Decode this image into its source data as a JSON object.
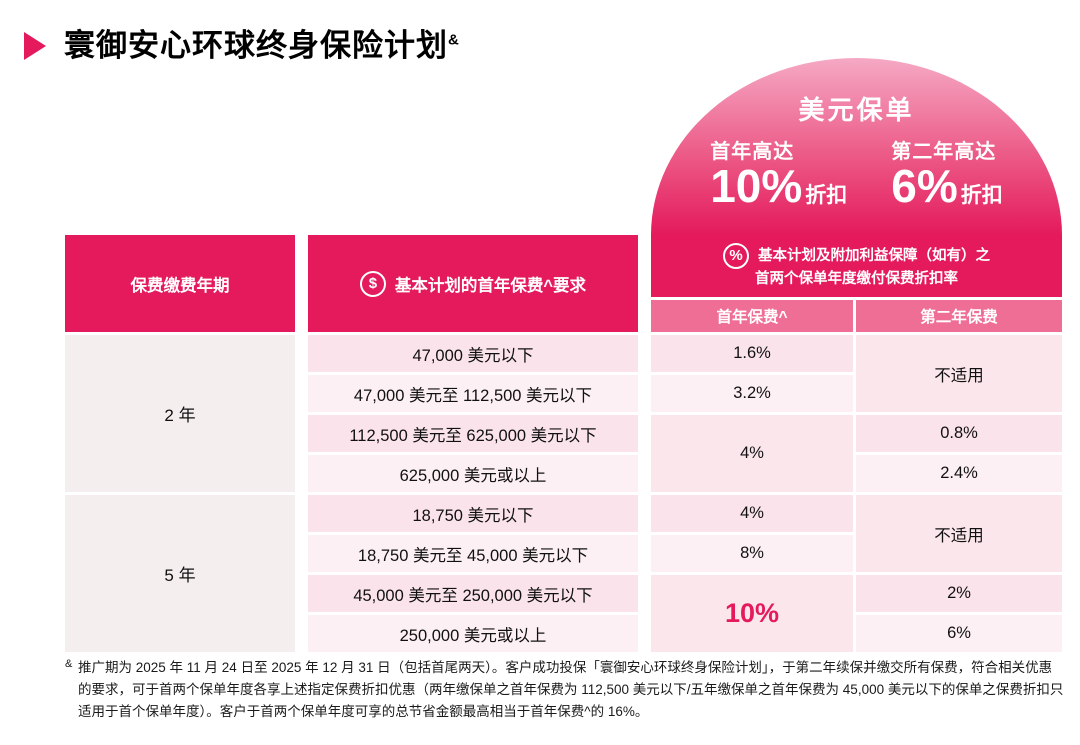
{
  "page": {
    "title": "寰御安心环球终身保险计划",
    "title_sup": "&"
  },
  "promo": {
    "heading": "美元保单",
    "first_year_label": "首年高达",
    "first_year_value": "10%",
    "first_year_suffix": "折扣",
    "second_year_label": "第二年高达",
    "second_year_value": "6%",
    "second_year_suffix": "折扣"
  },
  "table": {
    "headers": {
      "payment_term": "保费缴费年期",
      "dollar_icon": "$",
      "premium_requirement": "基本计划的首年保费^要求",
      "percent_icon": "%",
      "discount_line1": "基本计划及附加利益保障（如有）之",
      "discount_line2": "首两个保单年度缴付保费折扣率",
      "first_year_premium": "首年保费^",
      "second_year_premium": "第二年保费"
    },
    "terms": {
      "two_year": "2 年",
      "five_year": "5 年"
    },
    "requirements": {
      "r1": "47,000 美元以下",
      "r2": "47,000 美元至 112,500 美元以下",
      "r3": "112,500 美元至 625,000 美元以下",
      "r4": "625,000 美元或以上",
      "r5": "18,750 美元以下",
      "r6": "18,750 美元至 45,000 美元以下",
      "r7": "45,000 美元至 250,000 美元以下",
      "r8": "250,000 美元或以上"
    },
    "first_year_rates": {
      "r1": "1.6%",
      "r2": "3.2%",
      "r34": "4%",
      "r5": "4%",
      "r6": "8%",
      "r78": "10%"
    },
    "second_year_rates": {
      "r12": "不适用",
      "r3": "0.8%",
      "r4": "2.4%",
      "r56": "不适用",
      "r7": "2%",
      "r8": "6%"
    }
  },
  "footnote": {
    "marker": "&",
    "text": "推广期为 2025 年 11 月 24 日至 2025 年 12 月 31 日（包括首尾两天）。客户成功投保「寰御安心环球终身保险计划」，于第二年续保并缴交所有保费，符合相关优惠的要求，可于首两个保单年度各享上述指定保费折扣优惠（两年缴保单之首年保费为 112,500 美元以下/五年缴保单之首年保费为 45,000 美元以下的保单之保费折扣只适用于首个保单年度）。客户于首两个保单年度可享的总节省金额最高相当于首年保费^的 16%。"
  },
  "colors": {
    "accent_deep_pink": "#E41A5C",
    "subheader_pink": "#EF6E96",
    "row_pink_dark": "#FAE3EA",
    "row_pink_light": "#FCF0F4",
    "term_cell_bg": "#F5EEEF"
  }
}
